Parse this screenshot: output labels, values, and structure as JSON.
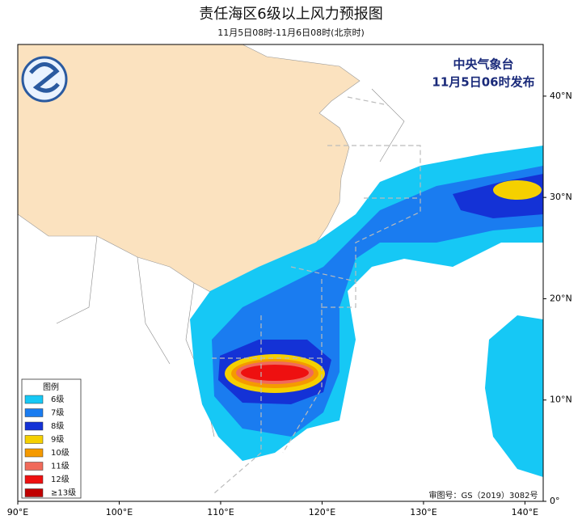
{
  "header": {
    "title": "责任海区6级以上风力预报图",
    "subtitle": "11月5日08时-11月6日08时(北京时)"
  },
  "map": {
    "issuer": "中央气象台",
    "issued": "11月5日06时发布",
    "approval": "审图号：GS（2019）3082号",
    "lonlim": [
      90,
      141.8
    ],
    "latlim": [
      0,
      45.1
    ],
    "lon_ticks": [
      {
        "value": 90,
        "label": "90°E"
      },
      {
        "value": 100,
        "label": "100°E"
      },
      {
        "value": 110,
        "label": "110°E"
      },
      {
        "value": 120,
        "label": "120°E"
      },
      {
        "value": 130,
        "label": "130°E"
      },
      {
        "value": 140,
        "label": "140°E"
      }
    ],
    "lat_ticks": [
      {
        "value": 0,
        "label": "0°"
      },
      {
        "value": 10,
        "label": "10°N"
      },
      {
        "value": 20,
        "label": "20°N"
      },
      {
        "value": 30,
        "label": "30°N"
      },
      {
        "value": 40,
        "label": "40°N"
      }
    ],
    "legend": {
      "title": "图例",
      "items": [
        {
          "label": "6级",
          "color": "#16c8f5"
        },
        {
          "label": "7级",
          "color": "#1a7cf0"
        },
        {
          "label": "8级",
          "color": "#1432d6"
        },
        {
          "label": "9级",
          "color": "#f5d000"
        },
        {
          "label": "10级",
          "color": "#f59a00"
        },
        {
          "label": "11级",
          "color": "#f06a5a"
        },
        {
          "label": "12级",
          "color": "#ee1010"
        },
        {
          "label": "≥13级",
          "color": "#c00000"
        }
      ]
    }
  }
}
